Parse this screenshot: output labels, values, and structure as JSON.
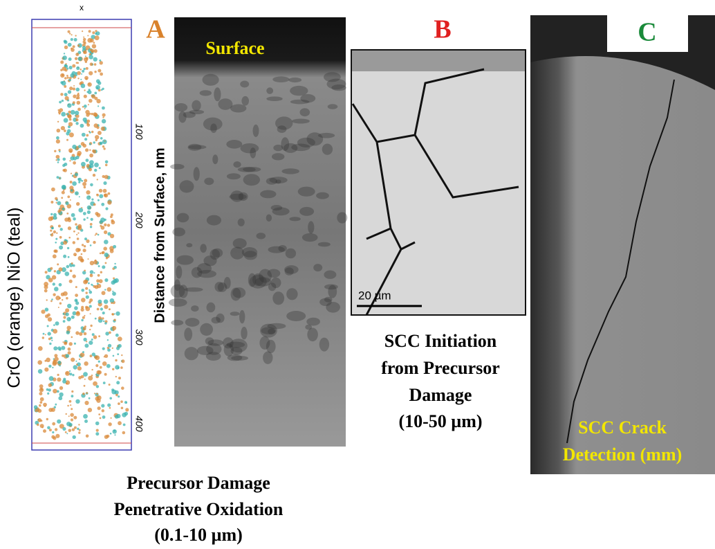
{
  "panel_a": {
    "label": "A",
    "surface_label": "Surface",
    "y_axis_label": "Distance from Surface, nm",
    "y_ticks": [
      "100",
      "200",
      "300",
      "400"
    ],
    "top_axis_label": "x",
    "atom_probe_label": "CrO (orange) NiO (teal)",
    "caption": [
      "Precursor Damage",
      "Penetrative Oxidation",
      "(0.1-10 µm)"
    ]
  },
  "panel_b": {
    "label": "B",
    "scale_bar": "20 µm",
    "caption": [
      "SCC Initiation",
      "from Precursor",
      "Damage",
      "(10-50 µm)"
    ]
  },
  "panel_c": {
    "label": "C",
    "caption": [
      "SCC Crack",
      "Detection (mm)"
    ]
  }
}
